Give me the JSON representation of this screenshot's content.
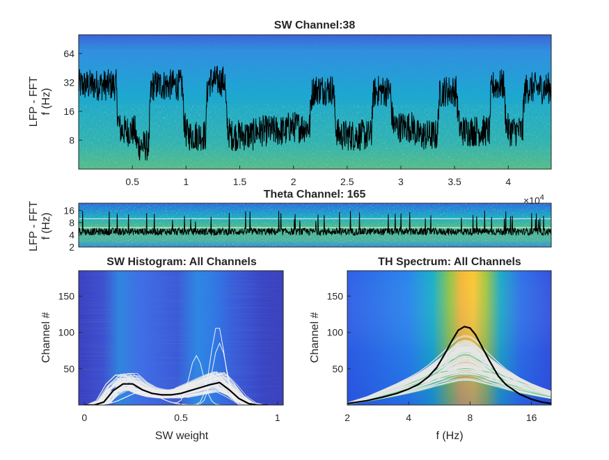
{
  "chart_data": [
    {
      "type": "heatmap",
      "panel": "sw-spectrogram",
      "title": "SW Channel:38",
      "ylabel": "LFP - FFT",
      "ylabel2": "f (Hz)",
      "x_ticks": [
        "0.5",
        "1",
        "1.5",
        "2",
        "2.5",
        "3",
        "3.5",
        "4"
      ],
      "x_tick_values": [
        5000,
        10000,
        15000,
        20000,
        25000,
        30000,
        35000,
        40000
      ],
      "xlim": [
        0,
        44000
      ],
      "y_scale": "log2",
      "y_ticks": [
        "8",
        "16",
        "32",
        "64"
      ],
      "y_tick_values": [
        8,
        16,
        32,
        64
      ],
      "ylim": [
        4,
        100
      ],
      "overlay": "black line: spectral slope trace, fluctuating between ~5 and ~45 Hz over time"
    },
    {
      "type": "heatmap",
      "panel": "theta-spectrogram",
      "title": "Theta Channel: 165",
      "ylabel": "LFP - FFT",
      "ylabel2": "f (Hz)",
      "x_exponent": "×10",
      "x_exponent_power": "4",
      "y_scale": "log2",
      "y_ticks": [
        "2",
        "4",
        "8",
        "16"
      ],
      "y_tick_values": [
        2,
        4,
        8,
        16
      ],
      "ylim": [
        2,
        24
      ],
      "theta_band_lines_hz": [
        6,
        10
      ]
    },
    {
      "type": "line",
      "panel": "sw-histogram",
      "title": "SW Histogram: All Channels",
      "xlabel": "SW weight",
      "ylabel": "Channel #",
      "x_ticks": [
        "0",
        "0.5",
        "1"
      ],
      "x_tick_values": [
        0,
        0.5,
        1
      ],
      "xlim": [
        -0.03,
        1.03
      ],
      "y_ticks": [
        "50",
        "100",
        "150"
      ],
      "y_tick_values": [
        50,
        100,
        150
      ],
      "ylim": [
        0,
        185
      ],
      "mean_curve": {
        "x": [
          0.0,
          0.05,
          0.1,
          0.15,
          0.2,
          0.25,
          0.3,
          0.35,
          0.4,
          0.45,
          0.5,
          0.55,
          0.6,
          0.65,
          0.7,
          0.75,
          0.8,
          0.85,
          0.9,
          0.95
        ],
        "y": [
          0,
          0,
          4,
          20,
          29,
          29,
          21,
          16,
          14,
          14,
          16,
          20,
          24,
          28,
          31,
          21,
          9,
          2,
          0,
          0
        ]
      },
      "channel_curves_peak_x": [
        0.6,
        0.7
      ]
    },
    {
      "type": "line",
      "panel": "th-spectrum",
      "title": "TH Spectrum: All Channels",
      "xlabel": "f (Hz)",
      "ylabel": "Channel #",
      "x_scale": "log2",
      "x_ticks": [
        "2",
        "4",
        "8",
        "16"
      ],
      "x_tick_values": [
        2,
        4,
        8,
        16
      ],
      "xlim": [
        2,
        20
      ],
      "y_ticks": [
        "50",
        "100",
        "150"
      ],
      "y_tick_values": [
        50,
        100,
        150
      ],
      "ylim": [
        0,
        185
      ],
      "mean_curve": {
        "x": [
          2,
          2.5,
          3,
          3.5,
          4,
          4.5,
          5,
          5.5,
          6,
          6.5,
          7,
          7.5,
          8,
          8.5,
          9,
          10,
          11,
          12,
          14,
          16,
          18,
          20
        ],
        "y": [
          2,
          6,
          11,
          16,
          22,
          29,
          39,
          52,
          70,
          88,
          103,
          108,
          106,
          97,
          84,
          60,
          40,
          28,
          15,
          8,
          4,
          2
        ]
      }
    }
  ]
}
